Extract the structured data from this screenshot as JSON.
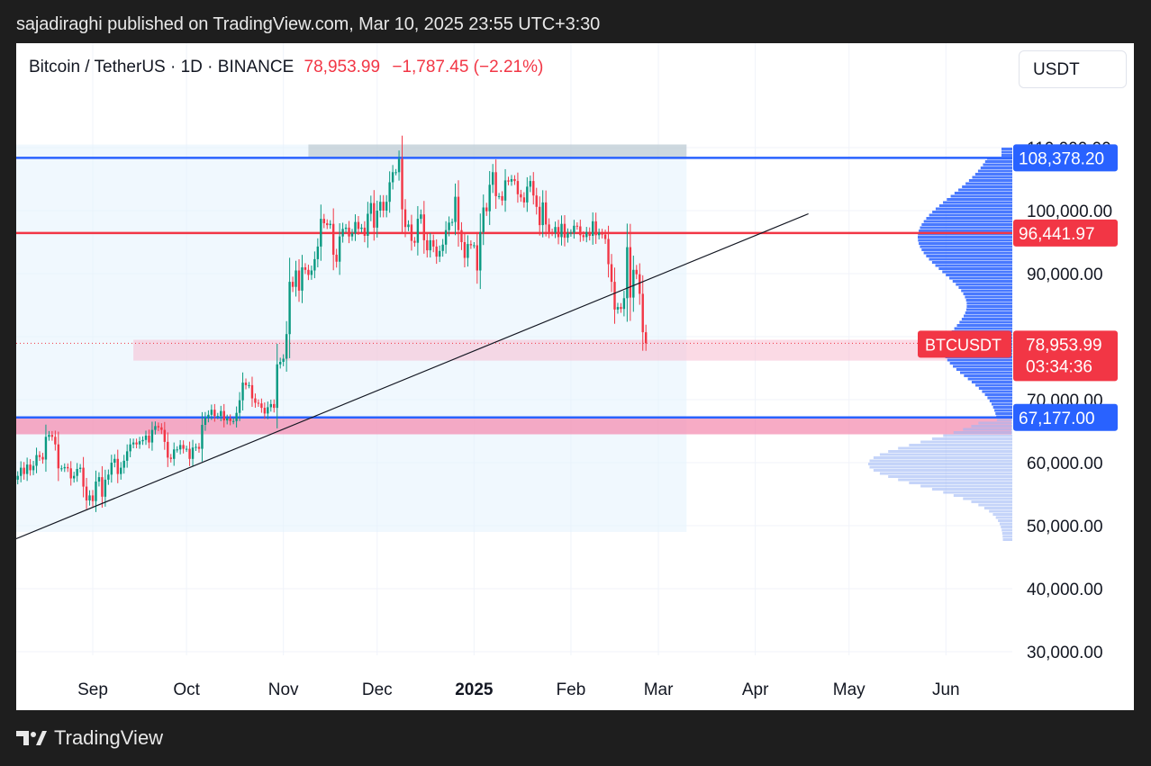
{
  "header": {
    "published_by": "sajadiraghi published on TradingView.com, Mar 10, 2025 23:55 UTC+3:30"
  },
  "symbol": {
    "name": "Bitcoin / TetherUS · 1D · BINANCE",
    "price": "78,953.99",
    "change": "−1,787.45 (−2.21%)",
    "currency": "USDT"
  },
  "footer": {
    "brand": "TradingView",
    "logo_icon": "tradingview-logo-icon"
  },
  "colors": {
    "up": "#089981",
    "down": "#f23645",
    "blue_line": "#2962ff",
    "red_line": "#f23645",
    "profile_blue": "#2962ff",
    "pink_zone": "#f48fb1"
  },
  "chart_data": {
    "type": "candlestick",
    "ylim": [
      25000,
      115000
    ],
    "y_ticks": [
      "110,000.00",
      "100,000.00",
      "90,000.00",
      "80,000.00",
      "70,000.00",
      "60,000.00",
      "50,000.00",
      "40,000.00",
      "30,000.00"
    ],
    "x_ticks": [
      {
        "label": "Sep",
        "bold": false
      },
      {
        "label": "Oct",
        "bold": false
      },
      {
        "label": "Nov",
        "bold": false
      },
      {
        "label": "Dec",
        "bold": false
      },
      {
        "label": "2025",
        "bold": true
      },
      {
        "label": "Feb",
        "bold": false
      },
      {
        "label": "Mar",
        "bold": false
      },
      {
        "label": "Apr",
        "bold": false
      },
      {
        "label": "May",
        "bold": false
      },
      {
        "label": "Jun",
        "bold": false
      }
    ],
    "price_labels": [
      {
        "text": "108,378.20",
        "value": 108378.2,
        "color": "#2962ff"
      },
      {
        "text": "96,441.97",
        "value": 96441.97,
        "color": "#f23645"
      },
      {
        "text": "67,177.00",
        "value": 67177.0,
        "color": "#2962ff"
      }
    ],
    "last_price": {
      "symbol": "BTCUSDT",
      "value": 78953.99,
      "text": "78,953.99",
      "countdown": "03:34:36"
    },
    "horizontal_lines": [
      {
        "value": 108378.2,
        "color": "#2962ff"
      },
      {
        "value": 96441.97,
        "color": "#f23645"
      },
      {
        "value": 67177.0,
        "color": "#2962ff"
      }
    ],
    "zones": [
      {
        "from": "2024-11-09",
        "to": "2025-03-10",
        "top": 110500,
        "bottom": 108400,
        "color": "#b0bec5"
      },
      {
        "from": "2024-09-14",
        "to": "2025-06-22",
        "top": 79500,
        "bottom": 76200,
        "color": "#f8bbd0"
      },
      {
        "from": "2024-07-27",
        "to": "2025-06-22",
        "top": 67000,
        "bottom": 64500,
        "color": "#f48fb1"
      },
      {
        "from": "2024-07-27",
        "to": "2025-03-10",
        "top": 110500,
        "bottom": 49000,
        "color": "#e3f2fd"
      }
    ],
    "trendline": {
      "x1": "2024-07-29",
      "y1": 46000,
      "x2": "2025-04-18",
      "y2": 99500
    },
    "candles_daily": [
      [
        60000,
        63000
      ],
      [
        63000,
        60200
      ],
      [
        60200,
        59300
      ],
      [
        59300,
        61800
      ],
      [
        61800,
        59000
      ],
      [
        59000,
        59700
      ],
      [
        59700,
        62500
      ],
      [
        62500,
        62200
      ],
      [
        62200,
        58100
      ],
      [
        58100,
        57700
      ],
      [
        57700,
        59300
      ],
      [
        59300,
        57300
      ],
      [
        57300,
        57900
      ],
      [
        57900,
        59200
      ],
      [
        59200,
        58200
      ],
      [
        58200,
        59700
      ],
      [
        59700,
        58800
      ],
      [
        58800,
        59500
      ],
      [
        59500,
        61200
      ],
      [
        61200,
        60900
      ],
      [
        60900,
        60500
      ],
      [
        60500,
        64100
      ],
      [
        64100,
        64400
      ],
      [
        64400,
        64100
      ],
      [
        64100,
        62900
      ],
      [
        62900,
        59100
      ],
      [
        59100,
        59100
      ],
      [
        59100,
        59300
      ],
      [
        59300,
        59100
      ],
      [
        59100,
        57500
      ],
      [
        57500,
        57900
      ],
      [
        57900,
        59000
      ],
      [
        59000,
        59200
      ],
      [
        59200,
        56200
      ],
      [
        56200,
        54000
      ],
      [
        54000,
        54800
      ],
      [
        54800,
        53900
      ],
      [
        53900,
        57000
      ],
      [
        57000,
        57700
      ],
      [
        57700,
        54600
      ],
      [
        54600,
        57300
      ],
      [
        57300,
        58100
      ],
      [
        58100,
        60000
      ],
      [
        60000,
        60600
      ],
      [
        60600,
        58200
      ],
      [
        58200,
        59200
      ],
      [
        59200,
        60300
      ],
      [
        60300,
        61800
      ],
      [
        61800,
        62900
      ],
      [
        62900,
        63200
      ],
      [
        63200,
        62900
      ],
      [
        62900,
        63400
      ],
      [
        63400,
        63600
      ],
      [
        63600,
        64300
      ],
      [
        64300,
        63200
      ],
      [
        63200,
        65200
      ],
      [
        65200,
        65800
      ],
      [
        65800,
        65600
      ],
      [
        65600,
        65200
      ],
      [
        65200,
        63300
      ],
      [
        63300,
        60800
      ],
      [
        60800,
        60600
      ],
      [
        60600,
        62100
      ],
      [
        62100,
        62100
      ],
      [
        62100,
        62800
      ],
      [
        62800,
        62200
      ],
      [
        62200,
        62200
      ],
      [
        62200,
        60600
      ],
      [
        60600,
        62400
      ],
      [
        62400,
        62500
      ],
      [
        62500,
        62200
      ],
      [
        62200,
        66000
      ],
      [
        66000,
        67100
      ],
      [
        67100,
        67600
      ],
      [
        67600,
        68400
      ],
      [
        68400,
        67400
      ],
      [
        67400,
        67400
      ],
      [
        67400,
        68200
      ],
      [
        68200,
        66700
      ],
      [
        66700,
        67000
      ],
      [
        67000,
        66600
      ],
      [
        66600,
        66600
      ],
      [
        66600,
        67900
      ],
      [
        67900,
        69900
      ],
      [
        69900,
        72700
      ],
      [
        72700,
        72300
      ],
      [
        72300,
        72300
      ],
      [
        72300,
        70200
      ],
      [
        70200,
        69500
      ],
      [
        69500,
        69400
      ],
      [
        69400,
        68700
      ],
      [
        68700,
        67800
      ],
      [
        67800,
        68800
      ],
      [
        68800,
        69300
      ],
      [
        69300,
        68700
      ],
      [
        68700,
        75600
      ],
      [
        75600,
        76000
      ],
      [
        76000,
        76500
      ],
      [
        76500,
        80400
      ],
      [
        80400,
        88700
      ],
      [
        88700,
        87900
      ],
      [
        87900,
        90500
      ],
      [
        90500,
        87300
      ],
      [
        87300,
        91000
      ],
      [
        91000,
        90600
      ],
      [
        90600,
        89800
      ],
      [
        89800,
        90500
      ],
      [
        90500,
        92300
      ],
      [
        92300,
        94300
      ],
      [
        94300,
        98700
      ],
      [
        98700,
        98000
      ],
      [
        98000,
        97700
      ],
      [
        97700,
        97900
      ],
      [
        97900,
        93000
      ],
      [
        93000,
        91900
      ],
      [
        91900,
        95900
      ],
      [
        95900,
        97100
      ],
      [
        97100,
        97300
      ],
      [
        97300,
        95900
      ],
      [
        95900,
        96400
      ],
      [
        96400,
        98200
      ],
      [
        98200,
        97100
      ],
      [
        97100,
        97300
      ],
      [
        97300,
        96000
      ],
      [
        96000,
        99500
      ],
      [
        99500,
        101200
      ],
      [
        101200,
        97300
      ],
      [
        97300,
        100000
      ],
      [
        100000,
        101400
      ],
      [
        101400,
        100000
      ],
      [
        100000,
        101400
      ],
      [
        101400,
        104500
      ],
      [
        104500,
        106100
      ],
      [
        106100,
        106100
      ],
      [
        106100,
        108200
      ],
      [
        108200,
        100200
      ],
      [
        100200,
        97400
      ],
      [
        97400,
        97800
      ],
      [
        97800,
        95200
      ],
      [
        95200,
        94900
      ],
      [
        94900,
        98700
      ],
      [
        98700,
        99400
      ],
      [
        99400,
        95300
      ],
      [
        95300,
        93700
      ],
      [
        93700,
        95300
      ],
      [
        95300,
        94300
      ],
      [
        94300,
        92700
      ],
      [
        92700,
        93600
      ],
      [
        93600,
        94600
      ],
      [
        94600,
        96900
      ],
      [
        96900,
        98100
      ],
      [
        98100,
        98200
      ],
      [
        98200,
        102200
      ],
      [
        102200,
        96900
      ],
      [
        96900,
        95000
      ],
      [
        95000,
        92500
      ],
      [
        92500,
        94700
      ],
      [
        94700,
        94500
      ],
      [
        94500,
        94500
      ],
      [
        94500,
        90500
      ],
      [
        90500,
        96600
      ],
      [
        96600,
        100500
      ],
      [
        100500,
        99900
      ],
      [
        99900,
        104100
      ],
      [
        104100,
        106100
      ],
      [
        106100,
        102300
      ],
      [
        102300,
        102300
      ],
      [
        102300,
        101600
      ],
      [
        101600,
        104800
      ],
      [
        104800,
        104600
      ],
      [
        104600,
        105000
      ],
      [
        105000,
        104700
      ],
      [
        104700,
        102600
      ],
      [
        102600,
        102100
      ],
      [
        102100,
        101300
      ],
      [
        101300,
        103800
      ],
      [
        103800,
        104700
      ],
      [
        104700,
        102400
      ],
      [
        102400,
        100600
      ],
      [
        100600,
        97700
      ],
      [
        97700,
        101300
      ],
      [
        101300,
        97800
      ],
      [
        97800,
        96600
      ],
      [
        96600,
        96500
      ],
      [
        96500,
        97400
      ],
      [
        97400,
        95800
      ],
      [
        95800,
        97900
      ],
      [
        97900,
        95700
      ],
      [
        95700,
        96400
      ],
      [
        96400,
        96500
      ],
      [
        96500,
        97600
      ],
      [
        97600,
        97500
      ],
      [
        97500,
        96100
      ],
      [
        96100,
        95800
      ],
      [
        95800,
        96600
      ],
      [
        96600,
        96000
      ],
      [
        96000,
        98300
      ],
      [
        98300,
        96100
      ],
      [
        96100,
        96500
      ],
      [
        96500,
        96200
      ],
      [
        96200,
        95500
      ],
      [
        95500,
        91500
      ],
      [
        91500,
        88700
      ],
      [
        88700,
        84300
      ],
      [
        84300,
        84700
      ],
      [
        84700,
        84400
      ],
      [
        84400,
        86100
      ],
      [
        86100,
        94200
      ],
      [
        94200,
        86200
      ],
      [
        86200,
        90600
      ],
      [
        90600,
        89900
      ],
      [
        89900,
        86800
      ],
      [
        86800,
        80700
      ],
      [
        80700,
        78950
      ]
    ],
    "volume_profile_note": "horizontal volume profile on right edge, blue above 67,177 and light blue below"
  }
}
